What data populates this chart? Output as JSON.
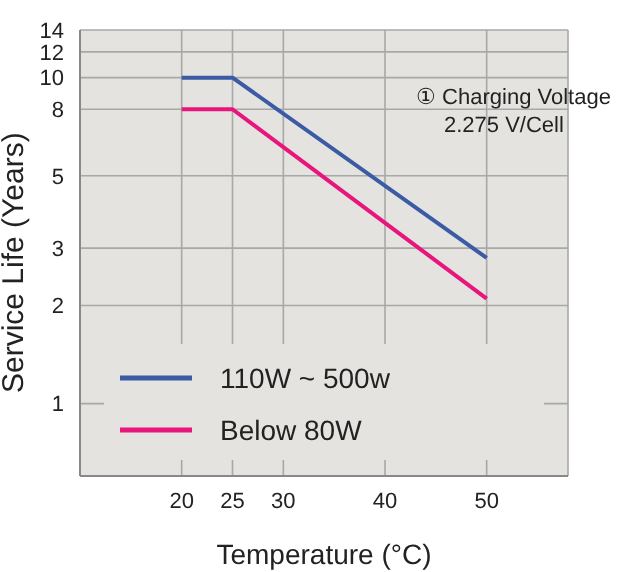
{
  "chart_data": {
    "type": "line",
    "xlabel": "Temperature (°C)",
    "ylabel": "Service Life (Years)",
    "x": [
      20,
      25,
      50
    ],
    "series": [
      {
        "name": "110W ~ 500w",
        "color": "#3b5ba5",
        "values": [
          10,
          10,
          2.8
        ]
      },
      {
        "name": "Below 80W",
        "color": "#e8157d",
        "values": [
          8,
          8,
          2.1
        ]
      }
    ],
    "xlim": [
      10,
      58
    ],
    "xticks": [
      20,
      25,
      30,
      40,
      50
    ],
    "ylim": [
      0.6,
      14
    ],
    "yticks": [
      1,
      2,
      3,
      5,
      8,
      10,
      12,
      14
    ],
    "log": true,
    "grid": true,
    "legend": "bottom",
    "annotations": [
      "① Charging Voltage\n2.275 V/Cell"
    ]
  }
}
